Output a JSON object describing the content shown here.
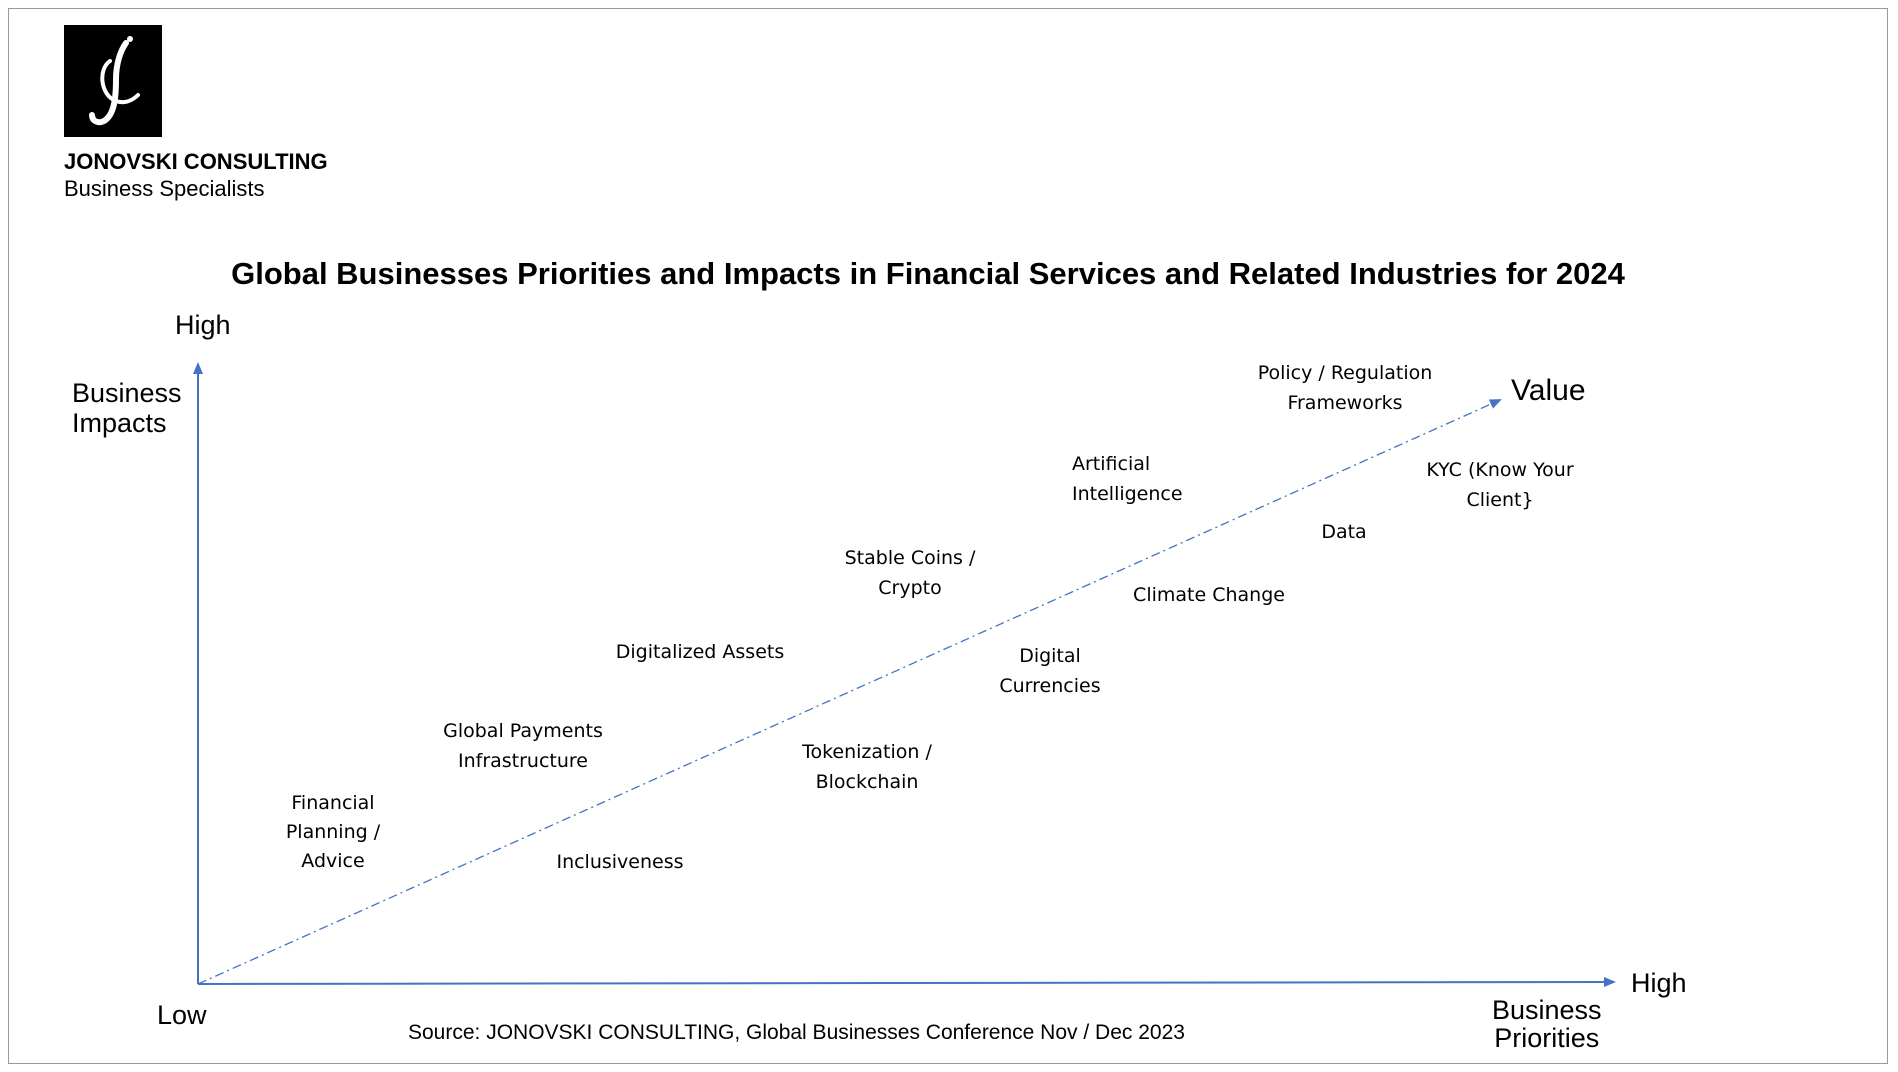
{
  "brand": {
    "name": "JONOVSKI CONSULTING",
    "tagline": "Business Specialists",
    "logo_icon": "jc-monogram-logo",
    "logo_bg": "#000000",
    "logo_fg": "#ffffff"
  },
  "chart": {
    "title": "Global Businesses Priorities and Impacts in Financial Services and Related Industries for 2024",
    "y_axis": {
      "high_label": "High",
      "title": "Business\nImpacts"
    },
    "x_axis": {
      "high_label": "High",
      "title": "Business\nPriorities"
    },
    "origin_label": "Low",
    "trend_label": "Value",
    "axis_color": "#4472C4",
    "source": "Source: JONOVSKI CONSULTING, Global Businesses Conference Nov / Dec 2023",
    "items": [
      {
        "id": "policy",
        "text": "Policy / Regulation\nFrameworks"
      },
      {
        "id": "kyc",
        "text": "KYC (Know Your\nClient}"
      },
      {
        "id": "ai",
        "text": "Artificial\nIntelligence"
      },
      {
        "id": "data",
        "text": "Data"
      },
      {
        "id": "stablecoins",
        "text": "Stable Coins /\nCrypto"
      },
      {
        "id": "climate",
        "text": "Climate Change"
      },
      {
        "id": "digital-assets",
        "text": "Digitalized Assets"
      },
      {
        "id": "digital-currencies",
        "text": "Digital\nCurrencies"
      },
      {
        "id": "global-payments",
        "text": "Global Payments\nInfrastructure"
      },
      {
        "id": "tokenization",
        "text": "Tokenization /\nBlockchain"
      },
      {
        "id": "financial-planning",
        "text": "Financial\nPlanning /\nAdvice"
      },
      {
        "id": "inclusiveness",
        "text": "Inclusiveness"
      }
    ]
  }
}
